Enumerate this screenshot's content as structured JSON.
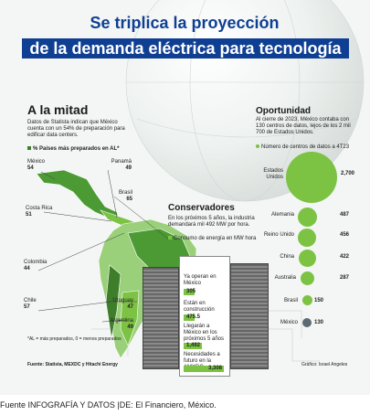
{
  "title": {
    "line1": "Se triplica la proyección",
    "line2": "de la demanda eléctrica para tecnología"
  },
  "left": {
    "heading": "A la mitad",
    "intro": "Datos de Statista indican que México cuenta con un 54% de preparación para edificar data centers.",
    "legend": "% Países más preparados en AL*",
    "countries": [
      {
        "name": "México",
        "value": "54"
      },
      {
        "name": "Panamá",
        "value": "49"
      },
      {
        "name": "Brasil",
        "value": "65"
      },
      {
        "name": "Costa Rica",
        "value": "51"
      },
      {
        "name": "Colombia",
        "value": "44"
      },
      {
        "name": "Chile",
        "value": "57"
      },
      {
        "name": "Uruguay",
        "value": "47"
      },
      {
        "name": "Argentina",
        "value": "49"
      }
    ],
    "note": "*AL = más preparados, 0 = menos preparados"
  },
  "right": {
    "heading": "Oportunidad",
    "intro": "Al cierre de 2023, México contaba con 130 centros de datos, lejos de los 2 mil 700 de Estados Unidos.",
    "legend": "Número de centros de datos a 4T23",
    "countries": [
      {
        "name": "Estados Unidos",
        "value": "2,700"
      },
      {
        "name": "Alemania",
        "value": "487"
      },
      {
        "name": "Reino Unido",
        "value": "456"
      },
      {
        "name": "China",
        "value": "422"
      },
      {
        "name": "Australia",
        "value": "287"
      },
      {
        "name": "Brasil",
        "value": "150"
      },
      {
        "name": "México",
        "value": "130"
      }
    ]
  },
  "center": {
    "heading": "Conservadores",
    "intro": "En los próximos 5 años, la industria demandará mil 492 MW por hora.",
    "legend": "Consumo de energía en MW hora",
    "rows": [
      {
        "label": "Ya operan en México",
        "value": "305"
      },
      {
        "label": "Están en construcción",
        "value": "475.5"
      },
      {
        "label": "Llegarán a México en los próximos 5 años",
        "value": "1,492"
      },
      {
        "label": "Necesidades a futuro en la AMXDC",
        "value": "3,308"
      }
    ]
  },
  "source_left": "Fuente: Statista, MEXDC y Hitachi Energy",
  "source_right": "Gráfico: Israel Angeles",
  "footer": "Fuente INFOGRAFÍA Y DATOS |DE: El Financiero, México.",
  "colors": {
    "accent": "#0f3f93",
    "green": "#7cc243",
    "darkgreen": "#3e7d2a",
    "gray": "#6b6f73"
  }
}
